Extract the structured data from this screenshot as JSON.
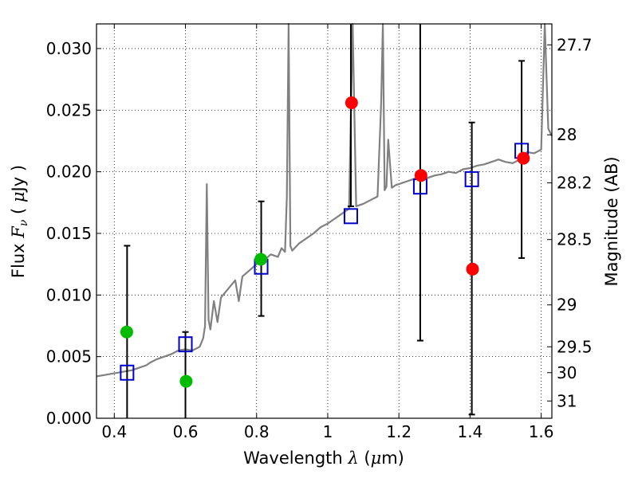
{
  "chart_data": {
    "type": "scatter",
    "xlabel": "Wavelength  λ (μm)",
    "ylabel": "Flux  F_ν  ( μJy )",
    "y2label": "Magnitude (AB)",
    "xlim": [
      0.35,
      1.63
    ],
    "ylim": [
      0.0,
      0.032
    ],
    "grid": true,
    "x_ticks": [
      0.4,
      0.6,
      0.8,
      1.0,
      1.2,
      1.4,
      1.6
    ],
    "x_tick_labels": [
      "0.4",
      "0.6",
      "0.8",
      "1",
      "1.2",
      "1.4",
      "1.6"
    ],
    "y_ticks": [
      0.0,
      0.005,
      0.01,
      0.015,
      0.02,
      0.025,
      0.03
    ],
    "y_tick_labels": [
      "0.000",
      "0.005",
      "0.010",
      "0.015",
      "0.020",
      "0.025",
      "0.030"
    ],
    "y2_ticks": [
      {
        "label": "27.7",
        "flux": 0.0303
      },
      {
        "label": "28",
        "flux": 0.023
      },
      {
        "label": "28.2",
        "flux": 0.0191
      },
      {
        "label": "28.5",
        "flux": 0.0145
      },
      {
        "label": "29",
        "flux": 0.0092
      },
      {
        "label": "29.5",
        "flux": 0.0058
      },
      {
        "label": "30",
        "flux": 0.0037
      },
      {
        "label": "31",
        "flux": 0.0014
      }
    ],
    "series": [
      {
        "name": "model-spectrum",
        "kind": "line",
        "color": "#808080",
        "x": [
          0.35,
          0.37,
          0.39,
          0.41,
          0.43,
          0.45,
          0.47,
          0.49,
          0.5,
          0.52,
          0.54,
          0.56,
          0.58,
          0.6,
          0.62,
          0.64,
          0.65,
          0.655,
          0.66,
          0.665,
          0.67,
          0.68,
          0.69,
          0.7,
          0.72,
          0.74,
          0.75,
          0.76,
          0.78,
          0.8,
          0.82,
          0.84,
          0.86,
          0.87,
          0.88,
          0.885,
          0.89,
          0.895,
          0.9,
          0.92,
          0.94,
          0.96,
          0.98,
          1.0,
          1.02,
          1.04,
          1.06,
          1.07,
          1.08,
          1.1,
          1.12,
          1.14,
          1.15,
          1.155,
          1.16,
          1.165,
          1.17,
          1.18,
          1.19,
          1.2,
          1.22,
          1.24,
          1.26,
          1.28,
          1.3,
          1.32,
          1.34,
          1.36,
          1.38,
          1.4,
          1.42,
          1.44,
          1.46,
          1.48,
          1.5,
          1.52,
          1.54,
          1.55,
          1.56,
          1.58,
          1.6,
          1.61,
          1.62,
          1.63
        ],
        "y": [
          0.0034,
          0.0035,
          0.0036,
          0.0037,
          0.0038,
          0.0039,
          0.0041,
          0.0043,
          0.0045,
          0.0048,
          0.005,
          0.0052,
          0.0055,
          0.0056,
          0.0055,
          0.0058,
          0.0065,
          0.0075,
          0.019,
          0.008,
          0.0072,
          0.0095,
          0.0078,
          0.0098,
          0.0105,
          0.0112,
          0.0095,
          0.0115,
          0.012,
          0.0125,
          0.0128,
          0.0133,
          0.0131,
          0.0138,
          0.0135,
          0.018,
          0.032,
          0.014,
          0.0136,
          0.0142,
          0.0146,
          0.015,
          0.0155,
          0.0158,
          0.0162,
          0.0166,
          0.017,
          0.032,
          0.0172,
          0.0174,
          0.0177,
          0.018,
          0.0255,
          0.032,
          0.0185,
          0.0188,
          0.0226,
          0.0187,
          0.0189,
          0.019,
          0.0192,
          0.0194,
          0.0196,
          0.0195,
          0.0197,
          0.0198,
          0.02,
          0.0199,
          0.0202,
          0.0203,
          0.0205,
          0.0206,
          0.0208,
          0.021,
          0.0208,
          0.0207,
          0.021,
          0.0212,
          0.0216,
          0.0215,
          0.0218,
          0.032,
          0.0235,
          0.0229
        ]
      },
      {
        "name": "green-observed",
        "kind": "points",
        "color": "#00bb00",
        "x": [
          0.435,
          0.602,
          0.812
        ],
        "y": [
          0.007,
          0.003,
          0.0129
        ]
      },
      {
        "name": "red-observed",
        "kind": "points",
        "color": "#ff0000",
        "x": [
          1.067,
          1.262,
          1.407,
          1.55
        ],
        "y": [
          0.0256,
          0.0197,
          0.0121,
          0.0211
        ]
      },
      {
        "name": "model-photometry",
        "kind": "squares",
        "color": "#0000cc",
        "x": [
          0.436,
          0.6,
          0.813,
          1.065,
          1.26,
          1.405,
          1.545
        ],
        "y": [
          0.0037,
          0.006,
          0.0123,
          0.0164,
          0.0188,
          0.0194,
          0.0217
        ]
      },
      {
        "name": "error-bars",
        "kind": "errorbar",
        "color": "#000000",
        "x": [
          0.436,
          0.6,
          0.813,
          1.065,
          1.26,
          1.405,
          1.545
        ],
        "low": [
          0.0,
          0.0,
          0.0083,
          0.0172,
          0.0063,
          0.0003,
          0.013
        ],
        "high": [
          0.014,
          0.007,
          0.0176,
          0.032,
          0.032,
          0.024,
          0.029
        ]
      }
    ]
  }
}
